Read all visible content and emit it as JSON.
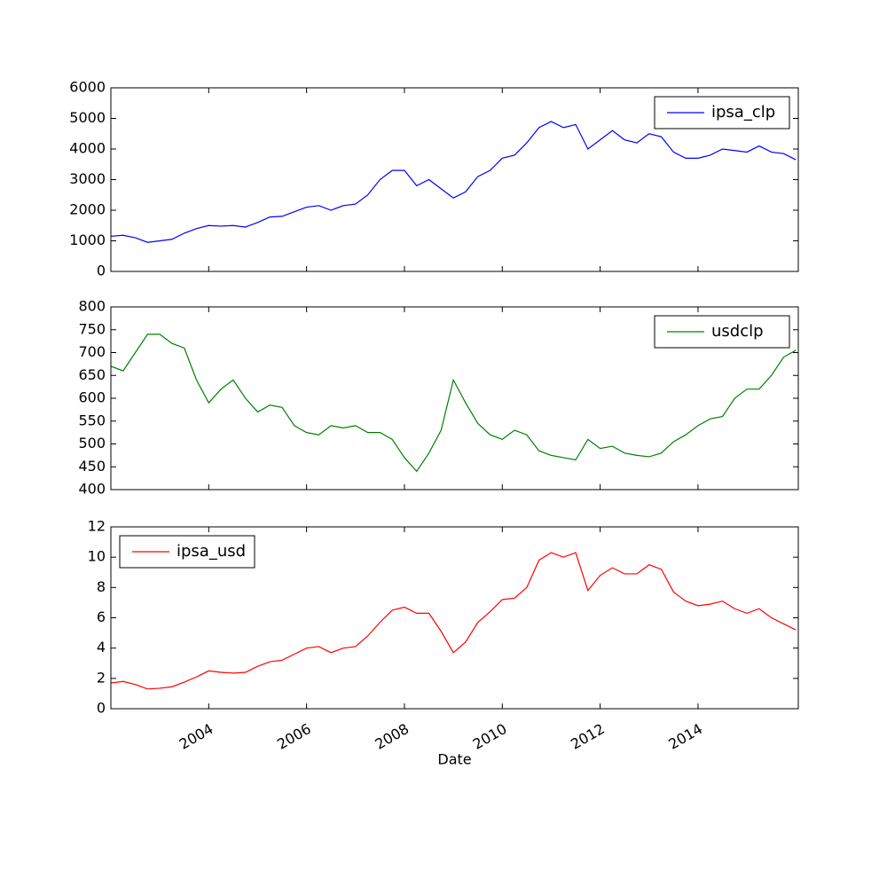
{
  "chart_data": [
    {
      "type": "line",
      "x": [
        2002.0,
        2002.25,
        2002.5,
        2002.75,
        2003.0,
        2003.25,
        2003.5,
        2003.75,
        2004.0,
        2004.25,
        2004.5,
        2004.75,
        2005.0,
        2005.25,
        2005.5,
        2005.75,
        2006.0,
        2006.25,
        2006.5,
        2006.75,
        2007.0,
        2007.25,
        2007.5,
        2007.75,
        2008.0,
        2008.25,
        2008.5,
        2008.75,
        2009.0,
        2009.25,
        2009.5,
        2009.75,
        2010.0,
        2010.25,
        2010.5,
        2010.75,
        2011.0,
        2011.25,
        2011.5,
        2011.75,
        2012.0,
        2012.25,
        2012.5,
        2012.75,
        2013.0,
        2013.25,
        2013.5,
        2013.75,
        2014.0,
        2014.25,
        2014.5,
        2014.75,
        2015.0,
        2015.25,
        2015.5,
        2015.75,
        2016.0
      ],
      "series": [
        {
          "name": "ipsa_clp",
          "color": "#0000ff",
          "values": [
            1150,
            1180,
            1100,
            950,
            1000,
            1050,
            1250,
            1400,
            1500,
            1480,
            1500,
            1450,
            1600,
            1780,
            1800,
            1950,
            2100,
            2150,
            2000,
            2150,
            2200,
            2500,
            3000,
            3300,
            3300,
            2800,
            3000,
            2700,
            2400,
            2600,
            3100,
            3300,
            3700,
            3800,
            4200,
            4700,
            4900,
            4700,
            4800,
            4000,
            4300,
            4600,
            4300,
            4200,
            4500,
            4400,
            3900,
            3700,
            3700,
            3800,
            4000,
            3950,
            3900,
            4100,
            3900,
            3850,
            3650
          ]
        }
      ],
      "xlim": [
        2002.0,
        2016.05
      ],
      "xticks": [
        2004,
        2006,
        2008,
        2010,
        2012,
        2014
      ],
      "xticklabels": false,
      "ylim": [
        0,
        6000
      ],
      "yticks": [
        0,
        1000,
        2000,
        3000,
        4000,
        5000,
        6000
      ],
      "legend": "upper right"
    },
    {
      "type": "line",
      "x": [
        2002.0,
        2002.25,
        2002.5,
        2002.75,
        2003.0,
        2003.25,
        2003.5,
        2003.75,
        2004.0,
        2004.25,
        2004.5,
        2004.75,
        2005.0,
        2005.25,
        2005.5,
        2005.75,
        2006.0,
        2006.25,
        2006.5,
        2006.75,
        2007.0,
        2007.25,
        2007.5,
        2007.75,
        2008.0,
        2008.25,
        2008.5,
        2008.75,
        2009.0,
        2009.25,
        2009.5,
        2009.75,
        2010.0,
        2010.25,
        2010.5,
        2010.75,
        2011.0,
        2011.25,
        2011.5,
        2011.75,
        2012.0,
        2012.25,
        2012.5,
        2012.75,
        2013.0,
        2013.25,
        2013.5,
        2013.75,
        2014.0,
        2014.25,
        2014.5,
        2014.75,
        2015.0,
        2015.25,
        2015.5,
        2015.75,
        2016.0
      ],
      "series": [
        {
          "name": "usdclp",
          "color": "#008000",
          "values": [
            670,
            660,
            700,
            740,
            740,
            720,
            710,
            640,
            590,
            620,
            640,
            600,
            570,
            585,
            580,
            540,
            525,
            520,
            540,
            535,
            540,
            525,
            525,
            510,
            470,
            440,
            480,
            530,
            640,
            590,
            545,
            520,
            510,
            530,
            520,
            485,
            475,
            470,
            465,
            510,
            490,
            495,
            480,
            475,
            472,
            480,
            505,
            520,
            540,
            555,
            560,
            600,
            620,
            620,
            650,
            690,
            705
          ]
        }
      ],
      "xlim": [
        2002.0,
        2016.05
      ],
      "xticks": [
        2004,
        2006,
        2008,
        2010,
        2012,
        2014
      ],
      "xticklabels": false,
      "ylim": [
        400,
        800
      ],
      "yticks": [
        400,
        450,
        500,
        550,
        600,
        650,
        700,
        750,
        800
      ],
      "legend": "upper right"
    },
    {
      "type": "line",
      "xlabel": "Date",
      "x": [
        2002.0,
        2002.25,
        2002.5,
        2002.75,
        2003.0,
        2003.25,
        2003.5,
        2003.75,
        2004.0,
        2004.25,
        2004.5,
        2004.75,
        2005.0,
        2005.25,
        2005.5,
        2005.75,
        2006.0,
        2006.25,
        2006.5,
        2006.75,
        2007.0,
        2007.25,
        2007.5,
        2007.75,
        2008.0,
        2008.25,
        2008.5,
        2008.75,
        2009.0,
        2009.25,
        2009.5,
        2009.75,
        2010.0,
        2010.25,
        2010.5,
        2010.75,
        2011.0,
        2011.25,
        2011.5,
        2011.75,
        2012.0,
        2012.25,
        2012.5,
        2012.75,
        2013.0,
        2013.25,
        2013.5,
        2013.75,
        2014.0,
        2014.25,
        2014.5,
        2014.75,
        2015.0,
        2015.25,
        2015.5,
        2015.75,
        2016.0
      ],
      "series": [
        {
          "name": "ipsa_usd",
          "color": "#ff0000",
          "values": [
            1.7,
            1.8,
            1.6,
            1.3,
            1.35,
            1.45,
            1.75,
            2.1,
            2.5,
            2.4,
            2.35,
            2.4,
            2.8,
            3.1,
            3.2,
            3.6,
            4.0,
            4.1,
            3.7,
            4.0,
            4.1,
            4.8,
            5.7,
            6.5,
            6.7,
            6.3,
            6.3,
            5.1,
            3.7,
            4.4,
            5.7,
            6.4,
            7.2,
            7.3,
            8.0,
            9.8,
            10.3,
            10.0,
            10.3,
            7.8,
            8.8,
            9.3,
            8.9,
            8.9,
            9.5,
            9.2,
            7.7,
            7.1,
            6.8,
            6.9,
            7.1,
            6.6,
            6.3,
            6.6,
            6.0,
            5.6,
            5.2
          ]
        }
      ],
      "xlim": [
        2002.0,
        2016.05
      ],
      "xticks": [
        2004,
        2006,
        2008,
        2010,
        2012,
        2014
      ],
      "ylim": [
        0,
        12
      ],
      "yticks": [
        0,
        2,
        4,
        6,
        8,
        10,
        12
      ],
      "legend": "upper left"
    }
  ]
}
